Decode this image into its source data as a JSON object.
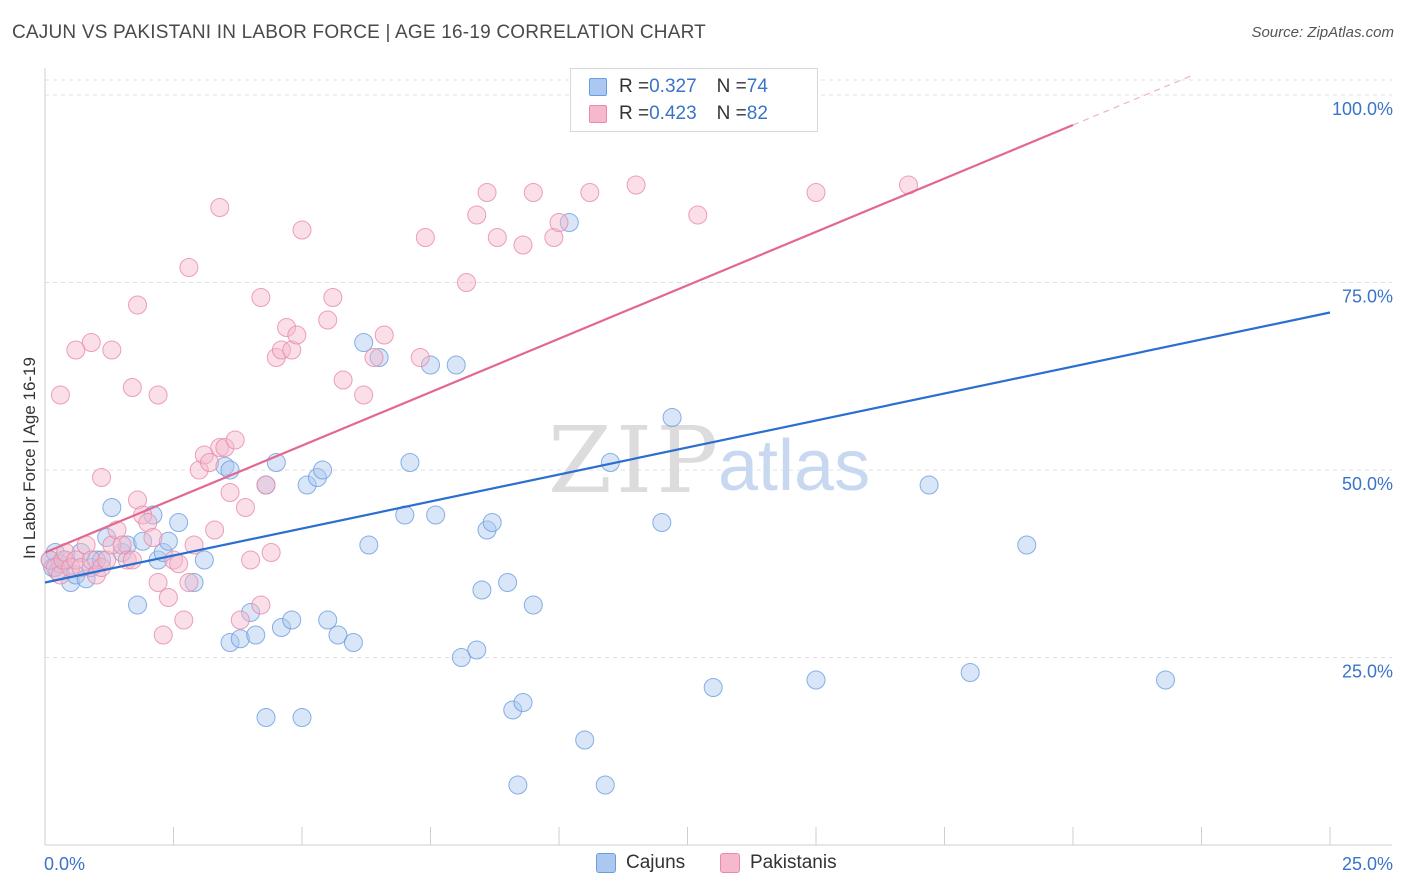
{
  "header": {
    "title": "CAJUN VS PAKISTANI IN LABOR FORCE | AGE 16-19 CORRELATION CHART",
    "source": "Source: ZipAtlas.com"
  },
  "watermark": {
    "zip": "ZIP",
    "atlas": "atlas"
  },
  "legend": {
    "rows": [
      {
        "r_label": "R = ",
        "r_value": "0.327",
        "n_label": "N = ",
        "n_value": "74"
      },
      {
        "r_label": "R = ",
        "r_value": "0.423",
        "n_label": "N = ",
        "n_value": "82"
      }
    ]
  },
  "bottom_legend": {
    "cajuns": "Cajuns",
    "pakistanis": "Pakistanis"
  },
  "colors": {
    "blue_fill": "#aac8f0",
    "blue_stroke": "#6a9ee0",
    "blue_line": "#2a6fd0",
    "pink_fill": "#f5b8cc",
    "pink_stroke": "#e88aa8",
    "pink_line": "#e2688f",
    "tick_label": "#3a74c8",
    "grid": "#e0e0e0"
  },
  "chart_data": {
    "type": "scatter",
    "title": "CAJUN VS PAKISTANI IN LABOR FORCE | AGE 16-19 CORRELATION CHART",
    "xlabel": "",
    "ylabel": "In Labor Force | Age 16-19",
    "xlim": [
      0,
      25
    ],
    "ylim": [
      0,
      102
    ],
    "x_tick_labels": [
      "0.0%",
      "25.0%"
    ],
    "y_ticks": [
      25,
      50,
      75,
      100
    ],
    "y_tick_labels": [
      "25.0%",
      "50.0%",
      "75.0%",
      "100.0%"
    ],
    "series": [
      {
        "name": "Cajuns",
        "r": 0.327,
        "n": 74,
        "trend": {
          "x": [
            0,
            25
          ],
          "y": [
            35.0,
            71.0
          ]
        },
        "x": [
          0.1,
          0.15,
          0.2,
          0.25,
          0.3,
          0.4,
          0.5,
          0.6,
          0.7,
          0.8,
          0.9,
          1.0,
          1.1,
          1.2,
          1.3,
          1.5,
          1.6,
          1.8,
          1.9,
          2.1,
          2.2,
          2.3,
          2.4,
          2.6,
          2.9,
          3.1,
          3.5,
          3.6,
          3.8,
          4.0,
          4.1,
          4.3,
          4.5,
          4.6,
          4.8,
          5.0,
          5.1,
          5.3,
          5.4,
          5.5,
          5.7,
          6.0,
          6.2,
          6.3,
          6.5,
          7.0,
          7.1,
          7.5,
          7.6,
          8.0,
          8.1,
          8.4,
          8.5,
          8.6,
          8.7,
          9.0,
          9.1,
          9.2,
          9.3,
          9.5,
          10.2,
          10.5,
          10.9,
          11.0,
          12.0,
          12.2,
          13.0,
          15.0,
          17.2,
          18.0,
          19.1,
          21.8,
          4.3,
          3.6
        ],
        "y": [
          38,
          37,
          39,
          36.5,
          37.5,
          38,
          35,
          36,
          39,
          35.5,
          37,
          38,
          38,
          41,
          45,
          39,
          40,
          32,
          40.5,
          44,
          38,
          39,
          40.5,
          43,
          35,
          38,
          50.5,
          27,
          27.5,
          31,
          28,
          48,
          51,
          29,
          30,
          17,
          48,
          49,
          50,
          30,
          28,
          27,
          67,
          40,
          65,
          44,
          51,
          64,
          44,
          64,
          25,
          26,
          34,
          42,
          43,
          35,
          18,
          8,
          19,
          32,
          83,
          14,
          8,
          51,
          43,
          57,
          21,
          22,
          48,
          23,
          40,
          22,
          17,
          50
        ]
      },
      {
        "name": "Pakistanis",
        "r": 0.423,
        "n": 82,
        "trend": {
          "x": [
            0,
            20
          ],
          "y": [
            39.0,
            96.0
          ]
        },
        "x": [
          0.1,
          0.2,
          0.3,
          0.35,
          0.4,
          0.5,
          0.6,
          0.7,
          0.8,
          0.9,
          1.0,
          1.1,
          1.2,
          1.3,
          1.4,
          1.5,
          1.6,
          1.7,
          1.8,
          1.9,
          2.0,
          2.1,
          2.2,
          2.3,
          2.4,
          2.5,
          2.6,
          2.7,
          2.8,
          2.9,
          3.0,
          3.1,
          3.2,
          3.3,
          3.4,
          3.5,
          3.6,
          3.7,
          3.8,
          3.9,
          4.0,
          4.2,
          4.3,
          4.4,
          4.5,
          4.6,
          4.7,
          4.8,
          4.9,
          5.0,
          5.5,
          5.6,
          5.8,
          6.2,
          6.4,
          6.6,
          7.3,
          7.4,
          8.2,
          8.4,
          8.6,
          8.8,
          9.3,
          9.5,
          9.9,
          10.0,
          10.6,
          11.5,
          12.7,
          15.0,
          16.8,
          4.2,
          2.2,
          1.8,
          0.9,
          1.3,
          3.4,
          2.8,
          1.7,
          1.1,
          0.6,
          0.3
        ],
        "y": [
          38,
          37,
          36,
          38,
          39,
          37,
          38,
          37,
          40,
          38,
          36,
          37,
          38,
          40,
          42,
          40,
          38,
          38,
          46,
          44,
          43,
          41,
          35,
          28,
          33,
          38,
          37.5,
          30,
          35,
          40,
          50,
          52,
          51,
          42,
          53,
          53,
          47,
          54,
          30,
          45,
          38,
          32,
          48,
          39,
          65,
          66,
          69,
          66,
          68,
          82,
          70,
          73,
          62,
          60,
          65,
          68,
          65,
          81,
          75,
          84,
          87,
          81,
          80,
          87,
          81,
          83,
          87,
          88,
          84,
          87,
          88,
          73,
          60,
          72,
          67,
          66,
          85,
          77,
          61,
          49,
          66,
          60
        ]
      }
    ]
  }
}
